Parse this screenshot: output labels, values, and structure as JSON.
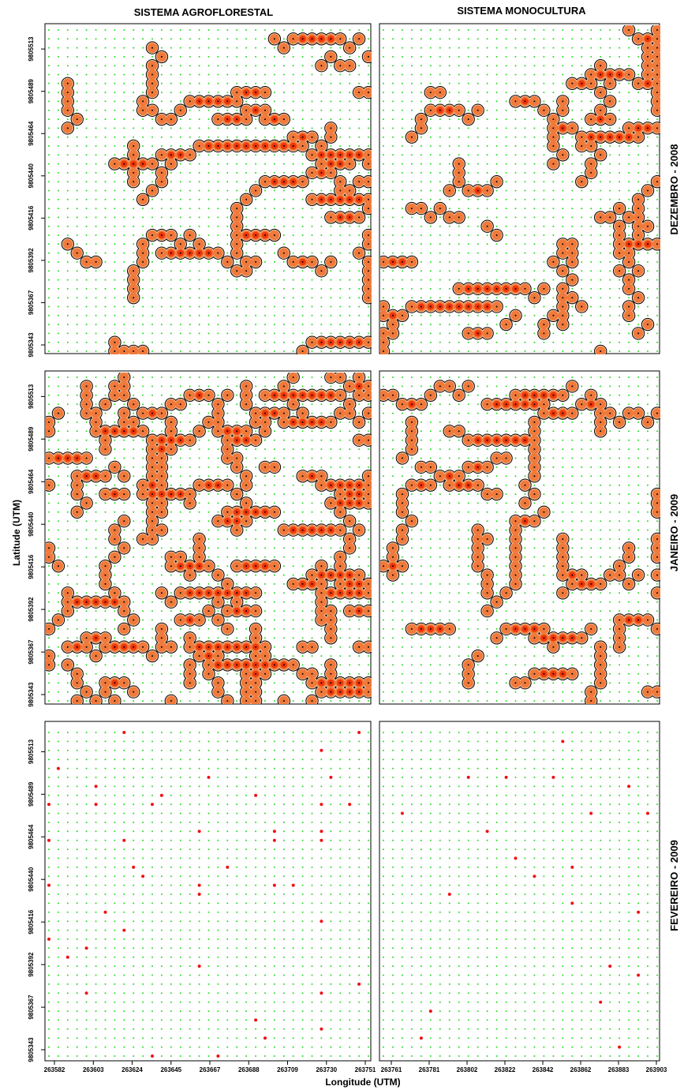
{
  "column_titles": [
    "SISTEMA AGROFLORESTAL",
    "SISTEMA MONOCULTURA"
  ],
  "row_titles": [
    "DEZEMBRO - 2008",
    "JANEIRO - 2009",
    "FEVEREIRO - 2009"
  ],
  "x_axis_label": "Longitude (UTM)",
  "y_axis_label": "Latitude  (UTM)",
  "x_ticks_left": [
    "263582",
    "263603",
    "263624",
    "263645",
    "263667",
    "263688",
    "263709",
    "263730",
    "263751"
  ],
  "x_ticks_right": [
    "263761",
    "263781",
    "263802",
    "263822",
    "263842",
    "263862",
    "263883",
    "263903"
  ],
  "y_ticks": [
    "9805343",
    "9805367",
    "9805392",
    "9805416",
    "9805440",
    "9805464",
    "9805489",
    "9805513"
  ],
  "colors": {
    "grid_point": "#22dd22",
    "sample_point": "#000000",
    "fill_outer": "#f07a3c",
    "fill_inner": "#ee2a00",
    "contour": "#000000",
    "presence_dot": "#ee1111"
  },
  "chart_data": {
    "type": "scatter",
    "description_keys": [
      "panels"
    ],
    "panels": [
      {
        "row": "DEZEMBRO - 2008",
        "system": "SISTEMA AGROFLORESTAL",
        "display": "kriged contour map",
        "density": 0.17
      },
      {
        "row": "DEZEMBRO - 2008",
        "system": "SISTEMA MONOCULTURA",
        "display": "kriged contour map",
        "density": 0.2
      },
      {
        "row": "JANEIRO - 2009",
        "system": "SISTEMA AGROFLORESTAL",
        "display": "kriged contour map",
        "density": 0.42
      },
      {
        "row": "JANEIRO - 2009",
        "system": "SISTEMA MONOCULTURA",
        "display": "kriged contour map",
        "density": 0.18
      },
      {
        "row": "FEVEREIRO - 2009",
        "system": "SISTEMA AGROFLORESTAL",
        "display": "point occurrence",
        "density": 0.04
      },
      {
        "row": "FEVEREIRO - 2009",
        "system": "SISTEMA MONOCULTURA",
        "display": "point occurrence",
        "density": 0.015
      }
    ],
    "xlim_left": [
      263582,
      263751
    ],
    "xlim_right": [
      263761,
      263903
    ],
    "ylim": [
      9805343,
      9805513
    ],
    "grid": true
  }
}
